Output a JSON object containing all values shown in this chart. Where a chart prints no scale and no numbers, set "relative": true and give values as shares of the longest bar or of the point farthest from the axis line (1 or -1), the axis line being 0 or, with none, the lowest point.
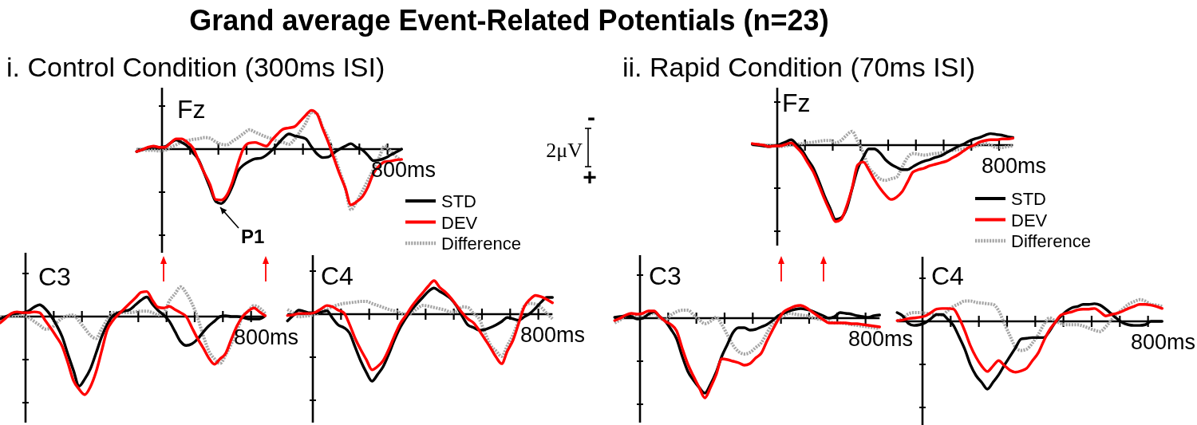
{
  "chart_data": [
    {
      "type": "line",
      "title": "Fz",
      "subtitle": "i. Control Condition (300ms ISI)",
      "relative": true,
      "legend": "bottom right",
      "annotations": [
        "Grand average Event-Related Potentials (n=23)",
        "P1",
        "800ms"
      ],
      "categories": [
        null,
        null,
        null,
        null,
        null,
        null,
        null,
        null,
        null,
        null,
        null,
        null,
        null,
        null,
        null,
        null,
        null,
        null,
        null,
        null,
        null,
        null,
        null,
        null,
        null,
        null,
        null,
        null,
        null,
        null,
        null,
        null,
        null,
        null,
        null,
        null,
        null,
        null,
        null,
        null,
        null,
        null,
        null,
        null,
        null,
        null,
        null,
        null
      ],
      "series": [
        {
          "name": "STD",
          "color": "#000000",
          "values": [
            -0.04,
            -0.01,
            0.02,
            0.04,
            0.03,
            0.04,
            0.1,
            0.15,
            0.11,
            0.05,
            -0.06,
            -0.18,
            -0.4,
            -0.63,
            -0.86,
            -0.9,
            -0.8,
            -0.61,
            -0.36,
            -0.26,
            -0.2,
            -0.16,
            -0.15,
            -0.1,
            -0.02,
            0.08,
            0.18,
            0.25,
            0.22,
            0.2,
            0.17,
            0.04,
            -0.08,
            -0.14,
            -0.13,
            -0.06,
            0,
            0.05,
            0.09,
            0.03,
            -0.01,
            -0.1,
            -0.19,
            -0.18,
            -0.15,
            -0.1,
            -0.05,
            0
          ]
        },
        {
          "name": "DEV",
          "color": "#ff0000",
          "values": [
            -0.04,
            -0.01,
            0.03,
            0.05,
            0.03,
            0.03,
            0.1,
            0.17,
            0.17,
            0.11,
            0.02,
            -0.19,
            -0.39,
            -0.58,
            -0.83,
            -0.84,
            -0.76,
            -0.54,
            -0.23,
            0.02,
            0.1,
            0.11,
            0.08,
            0.05,
            0.15,
            0.25,
            0.33,
            0.35,
            0.37,
            0.46,
            0.56,
            0.64,
            0.58,
            0.34,
            0.11,
            -0.15,
            -0.41,
            -0.64,
            -0.92,
            -0.87,
            -0.79,
            -0.63,
            -0.4,
            -0.28,
            -0.21,
            -0.2,
            -0.18,
            -0.17
          ]
        },
        {
          "name": "Difference",
          "color": "#a6a6a6",
          "line_style": "dotted",
          "values": [
            -0.01,
            -0.01,
            -0.02,
            -0.02,
            -0.03,
            -0.02,
            0.03,
            0.07,
            0.12,
            0.14,
            0.16,
            0.17,
            0.19,
            0.18,
            0.12,
            0.08,
            0.07,
            0.13,
            0.19,
            0.26,
            0.32,
            0.28,
            0.24,
            0.2,
            0.17,
            0.13,
            0.11,
            0.08,
            0.16,
            0.29,
            0.43,
            0.61,
            0.58,
            0.36,
            0.18,
            -0.08,
            -0.36,
            -0.64,
            -1,
            -0.87,
            -0.7,
            -0.52,
            -0.33,
            -0.14,
            0.05,
            -0.03,
            -0.12,
            -0.2
          ]
        }
      ]
    },
    {
      "type": "line",
      "title": "C3",
      "relative": true,
      "annotations": [
        "800ms"
      ],
      "categories": [
        null,
        null,
        null,
        null,
        null,
        null,
        null,
        null,
        null,
        null,
        null,
        null,
        null,
        null,
        null,
        null,
        null,
        null,
        null,
        null,
        null,
        null,
        null,
        null,
        null,
        null,
        null,
        null,
        null,
        null,
        null,
        null,
        null,
        null,
        null,
        null,
        null,
        null,
        null,
        null,
        null,
        null,
        null,
        null,
        null,
        null,
        null,
        null
      ],
      "series": [
        {
          "color": "#000000",
          "values": [
            -0.03,
            0,
            0.03,
            0.04,
            0.05,
            0.07,
            0.12,
            0.15,
            0.1,
            0.01,
            -0.11,
            -0.26,
            -0.48,
            -0.69,
            -0.89,
            -0.8,
            -0.67,
            -0.47,
            -0.26,
            -0.1,
            0.01,
            0.05,
            0.07,
            0.09,
            0.15,
            0.21,
            0.25,
            0.16,
            0.08,
            0.02,
            -0.06,
            -0.19,
            -0.32,
            -0.37,
            -0.35,
            -0.29,
            -0.2,
            -0.12,
            -0.06,
            0,
            0.01,
            0,
            0,
            -0.01,
            -0.03,
            -0.03,
            -0.03,
            0.01
          ]
        },
        {
          "color": "#ff0000",
          "values": [
            -0.08,
            -0.02,
            0.04,
            0.06,
            0.05,
            0.05,
            0.06,
            0.05,
            -0.05,
            -0.15,
            -0.26,
            -0.38,
            -0.59,
            -0.82,
            -0.93,
            -1,
            -0.9,
            -0.71,
            -0.44,
            -0.17,
            -0.05,
            0.03,
            0.1,
            0.17,
            0.24,
            0.31,
            0.32,
            0.21,
            0.12,
            0.11,
            0.13,
            0.09,
            0.05,
            0,
            -0.14,
            -0.28,
            -0.4,
            -0.53,
            -0.61,
            -0.54,
            -0.47,
            -0.29,
            -0.12,
            0,
            0.07,
            0.11,
            0.06,
            0.01
          ]
        },
        {
          "color": "#a6a6a6",
          "line_style": "dotted",
          "values": [
            -0.01,
            0,
            0,
            0.01,
            0.02,
            -0.01,
            -0.06,
            -0.11,
            -0.16,
            -0.15,
            -0.08,
            -0.02,
            0.01,
            0.02,
            -0.06,
            -0.15,
            -0.24,
            -0.28,
            -0.16,
            -0.04,
            0.05,
            0.05,
            0.05,
            0.05,
            0.06,
            0.07,
            0.07,
            0.05,
            0.02,
            0.04,
            0.2,
            0.29,
            0.38,
            0.3,
            0.17,
            -0.01,
            -0.24,
            -0.44,
            -0.54,
            -0.6,
            -0.49,
            -0.35,
            -0.18,
            0,
            0.07,
            0.14,
            0.11,
            0.04
          ]
        }
      ]
    },
    {
      "type": "line",
      "title": "C4",
      "relative": true,
      "annotations": [
        "800ms"
      ],
      "categories": [
        null,
        null,
        null,
        null,
        null,
        null,
        null,
        null,
        null,
        null,
        null,
        null,
        null,
        null,
        null,
        null,
        null,
        null,
        null,
        null,
        null,
        null,
        null,
        null,
        null,
        null,
        null,
        null,
        null,
        null,
        null,
        null,
        null,
        null,
        null,
        null,
        null,
        null,
        null,
        null,
        null,
        null,
        null,
        null,
        null,
        null,
        null,
        null
      ],
      "series": [
        {
          "color": "#000000",
          "values": [
            -0.1,
            -0.02,
            0.06,
            0.04,
            0.02,
            0.02,
            0.03,
            0.05,
            -0.06,
            -0.16,
            -0.2,
            -0.28,
            -0.49,
            -0.7,
            -0.87,
            -1,
            -0.9,
            -0.78,
            -0.59,
            -0.38,
            -0.2,
            -0.06,
            0.06,
            0.16,
            0.25,
            0.34,
            0.39,
            0.34,
            0.29,
            0.23,
            0.12,
            -0.03,
            -0.16,
            -0.2,
            -0.24,
            -0.23,
            -0.2,
            -0.16,
            -0.11,
            -0.05,
            -0.07,
            -0.09,
            -0.04,
            0.01,
            0.09,
            0.18,
            0.25,
            0.25
          ]
        },
        {
          "color": "#ff0000",
          "values": [
            -0.02,
            -0.01,
            0.01,
            0.01,
            0.01,
            0.03,
            0.08,
            0.13,
            0.11,
            0.06,
            0.02,
            -0.15,
            -0.36,
            -0.53,
            -0.68,
            -0.83,
            -0.78,
            -0.69,
            -0.52,
            -0.32,
            -0.14,
            -0.02,
            0.11,
            0.22,
            0.32,
            0.42,
            0.5,
            0.4,
            0.33,
            0.24,
            0.13,
            0.02,
            -0.07,
            -0.13,
            -0.24,
            -0.37,
            -0.5,
            -0.64,
            -0.74,
            -0.55,
            -0.39,
            -0.14,
            0.11,
            0.22,
            0.28,
            0.26,
            0.22,
            0.17
          ]
        },
        {
          "color": "#a6a6a6",
          "line_style": "dotted",
          "values": [
            0.07,
            0.02,
            -0.04,
            -0.03,
            -0.02,
            0,
            0.04,
            0.07,
            0.11,
            0.14,
            0.16,
            0.17,
            0.18,
            0.19,
            0.19,
            0.16,
            0.13,
            0.1,
            0.07,
            0.05,
            0.02,
            0,
            0.02,
            0.08,
            0.13,
            0.12,
            0.1,
            0.08,
            0.06,
            0.03,
            0.04,
            0.11,
            0.1,
            0.01,
            -0.07,
            -0.27,
            -0.46,
            -0.55,
            -0.63,
            -0.47,
            -0.31,
            -0.1,
            0.12,
            0.16,
            0.15,
            0.1,
            0.01,
            -0.07
          ]
        }
      ]
    },
    {
      "type": "line",
      "title": "Fz",
      "subtitle": "ii. Rapid Condition (70ms ISI)",
      "relative": true,
      "legend": "bottom right",
      "annotations": [
        "2μV",
        "-",
        "+",
        "800ms"
      ],
      "categories": [
        null,
        null,
        null,
        null,
        null,
        null,
        null,
        null,
        null,
        null,
        null,
        null,
        null,
        null,
        null,
        null,
        null,
        null,
        null,
        null,
        null,
        null,
        null,
        null,
        null,
        null,
        null,
        null,
        null,
        null,
        null,
        null,
        null,
        null,
        null,
        null,
        null,
        null,
        null,
        null,
        null,
        null,
        null,
        null,
        null,
        null,
        null,
        null
      ],
      "series": [
        {
          "name": "STD",
          "color": "#000000",
          "values": [
            0.01,
            0,
            -0.01,
            -0.02,
            -0.01,
            0.01,
            0.04,
            0.07,
            0.01,
            -0.07,
            -0.19,
            -0.3,
            -0.47,
            -0.66,
            -0.82,
            -0.97,
            -0.95,
            -0.83,
            -0.57,
            -0.31,
            -0.16,
            -0.05,
            -0.05,
            -0.1,
            -0.19,
            -0.25,
            -0.29,
            -0.32,
            -0.32,
            -0.28,
            -0.24,
            -0.21,
            -0.19,
            -0.16,
            -0.14,
            -0.1,
            -0.06,
            -0.02,
            0.01,
            0.05,
            0.08,
            0.1,
            0.13,
            0.15,
            0.14,
            0.13,
            0.11,
            0.1
          ]
        },
        {
          "name": "DEV",
          "color": "#ff0000",
          "values": [
            0.02,
            0.01,
            0,
            -0.02,
            -0.01,
            -0.01,
            0.01,
            0.03,
            -0.03,
            -0.11,
            -0.23,
            -0.35,
            -0.52,
            -0.7,
            -0.86,
            -1,
            -0.97,
            -0.8,
            -0.56,
            -0.26,
            -0.22,
            -0.32,
            -0.45,
            -0.56,
            -0.65,
            -0.71,
            -0.68,
            -0.61,
            -0.48,
            -0.35,
            -0.32,
            -0.3,
            -0.27,
            -0.25,
            -0.23,
            -0.21,
            -0.17,
            -0.13,
            -0.08,
            -0.03,
            0,
            0.04,
            0.06,
            0.07,
            0.07,
            0.08,
            0.08,
            0.09
          ]
        },
        {
          "name": "Difference",
          "color": "#a6a6a6",
          "line_style": "dotted",
          "values": [
            0.01,
            0.01,
            0,
            -0.01,
            -0.01,
            -0.02,
            -0.01,
            0,
            0.01,
            0.02,
            0.03,
            0.04,
            0.05,
            0.06,
            0.06,
            0.03,
            0.06,
            0.13,
            0.18,
            0.05,
            -0.1,
            -0.29,
            -0.37,
            -0.44,
            -0.46,
            -0.44,
            -0.42,
            -0.29,
            -0.16,
            -0.11,
            -0.12,
            -0.13,
            -0.12,
            -0.11,
            -0.1,
            -0.08,
            -0.07,
            -0.06,
            -0.05,
            -0.04,
            -0.02,
            0,
            0.02,
            0,
            -0.03,
            -0.03,
            -0.02,
            -0.01
          ]
        }
      ]
    },
    {
      "type": "line",
      "title": "C3",
      "relative": true,
      "annotations": [
        "800ms"
      ],
      "categories": [
        null,
        null,
        null,
        null,
        null,
        null,
        null,
        null,
        null,
        null,
        null,
        null,
        null,
        null,
        null,
        null,
        null,
        null,
        null,
        null,
        null,
        null,
        null,
        null,
        null,
        null,
        null,
        null,
        null,
        null,
        null,
        null,
        null,
        null,
        null,
        null,
        null,
        null,
        null,
        null,
        null,
        null,
        null,
        null,
        null,
        null,
        null,
        null
      ],
      "series": [
        {
          "color": "#000000",
          "values": [
            0.01,
            0.02,
            0.03,
            0.02,
            -0.01,
            0,
            0.05,
            0.08,
            0.02,
            -0.04,
            -0.14,
            -0.26,
            -0.48,
            -0.67,
            -0.78,
            -0.87,
            -0.94,
            -0.83,
            -0.68,
            -0.48,
            -0.33,
            -0.18,
            -0.12,
            -0.12,
            -0.15,
            -0.14,
            -0.11,
            -0.08,
            -0.03,
            0.03,
            0.06,
            0.09,
            0.11,
            0.12,
            0.11,
            0.09,
            0.06,
            0.03,
            0,
            0.02,
            0.07,
            0.06,
            0.05,
            0.03,
            0.02,
            0.01,
            0.03,
            0.04
          ]
        },
        {
          "color": "#ff0000",
          "values": [
            -0.03,
            0,
            0.04,
            0.06,
            0.05,
            0.06,
            0.09,
            0.09,
            0.02,
            -0.04,
            -0.08,
            -0.16,
            -0.38,
            -0.58,
            -0.73,
            -0.87,
            -1,
            -0.87,
            -0.71,
            -0.51,
            -0.52,
            -0.54,
            -0.56,
            -0.59,
            -0.57,
            -0.5,
            -0.44,
            -0.29,
            -0.15,
            -0.02,
            0.08,
            0.12,
            0.15,
            0.16,
            0.13,
            0.08,
            0.03,
            -0.02,
            -0.06,
            -0.06,
            -0.06,
            -0.06,
            -0.07,
            -0.07,
            -0.08,
            -0.09,
            -0.1,
            -0.11
          ]
        },
        {
          "color": "#a6a6a6",
          "line_style": "dotted",
          "values": [
            -0.06,
            -0.02,
            0.03,
            0.05,
            0.02,
            0.02,
            0.04,
            0.06,
            0,
            -0.02,
            0.04,
            0.08,
            0.1,
            0.1,
            0.04,
            -0.02,
            -0.07,
            -0.04,
            0.01,
            -0.08,
            -0.21,
            -0.34,
            -0.42,
            -0.45,
            -0.43,
            -0.37,
            -0.31,
            -0.19,
            -0.07,
            -0.01,
            0.03,
            0.06,
            0.05,
            0.04,
            0.03,
            0.01,
            -0.01,
            -0.02,
            -0.04,
            -0.06,
            -0.06,
            -0.07,
            -0.08,
            -0.09,
            -0.1,
            -0.11,
            -0.12,
            -0.13
          ]
        }
      ]
    },
    {
      "type": "line",
      "title": "C4",
      "relative": true,
      "annotations": [
        "800ms"
      ],
      "categories": [
        null,
        null,
        null,
        null,
        null,
        null,
        null,
        null,
        null,
        null,
        null,
        null,
        null,
        null,
        null,
        null,
        null,
        null,
        null,
        null,
        null,
        null,
        null,
        null,
        null,
        null,
        null,
        null,
        null,
        null,
        null,
        null,
        null,
        null,
        null,
        null,
        null,
        null,
        null,
        null,
        null,
        null,
        null,
        null,
        null,
        null,
        null,
        null
      ],
      "series": [
        {
          "color": "#000000",
          "values": [
            0.13,
            0.08,
            -0.03,
            -0.06,
            -0.05,
            -0.02,
            0.04,
            0.1,
            0.1,
            0.03,
            -0.06,
            -0.23,
            -0.41,
            -0.64,
            -0.8,
            -0.9,
            -1,
            -0.9,
            -0.79,
            -0.65,
            -0.52,
            -0.39,
            -0.26,
            -0.25,
            -0.24,
            -0.24,
            -0.24,
            -0.15,
            -0.02,
            0.07,
            0.15,
            0.2,
            0.22,
            0.25,
            0.25,
            0.26,
            0.24,
            0.18,
            0.11,
            0.04,
            -0.02,
            -0.05,
            -0.06,
            -0.06,
            -0.05,
            0,
            0,
            0
          ]
        },
        {
          "color": "#ff0000",
          "values": [
            0.01,
            0.02,
            0.04,
            0.05,
            0.06,
            0.08,
            0.13,
            0.18,
            0.19,
            0.19,
            0.18,
            0.05,
            -0.14,
            -0.36,
            -0.53,
            -0.66,
            -0.74,
            -0.66,
            -0.58,
            -0.65,
            -0.72,
            -0.75,
            -0.73,
            -0.69,
            -0.58,
            -0.47,
            -0.29,
            -0.13,
            -0.02,
            0.09,
            0.12,
            0.14,
            0.17,
            0.18,
            0.18,
            0.19,
            0.14,
            0.08,
            0.1,
            0.12,
            0.15,
            0.19,
            0.22,
            0.25,
            0.25,
            0.24,
            0.22,
            0.19
          ]
        },
        {
          "color": "#a6a6a6",
          "line_style": "dotted",
          "values": [
            0.01,
            0.04,
            0.11,
            0.13,
            0.13,
            0.12,
            0.11,
            0.1,
            0.09,
            0.16,
            0.22,
            0.26,
            0.3,
            0.3,
            0.28,
            0.27,
            0.26,
            0.25,
            0.16,
            -0.03,
            -0.21,
            -0.38,
            -0.43,
            -0.41,
            -0.32,
            -0.2,
            -0.05,
            0.05,
            0.01,
            -0.03,
            -0.05,
            -0.05,
            -0.05,
            -0.07,
            -0.1,
            -0.13,
            -0.15,
            -0.08,
            0.02,
            0.11,
            0.18,
            0.25,
            0.29,
            0.32,
            0.3,
            0.25,
            0.24,
            0.22
          ]
        }
      ]
    }
  ]
}
